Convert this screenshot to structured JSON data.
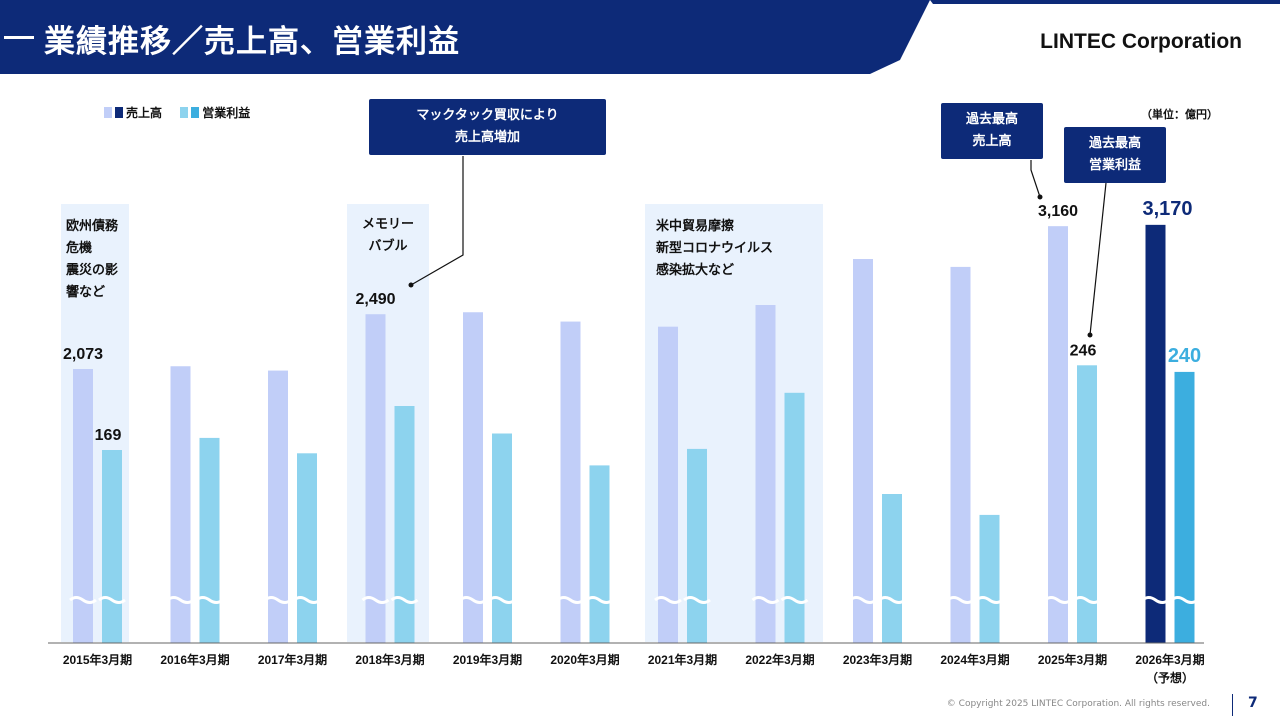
{
  "header": {
    "title": "業績推移／売上高、営業利益",
    "company": "LINTEC Corporation"
  },
  "legend": {
    "sales_label": "売上高",
    "profit_label": "営業利益"
  },
  "unit_label": "（単位：億円）",
  "annotations": {
    "shade_2015": "欧州債務\n危機\n震災の影\n響など",
    "shade_2018": "メモリー\nバブル",
    "shade_2021": "米中貿易摩擦\n新型コロナウイルス\n感染拡大など",
    "callout_acq": "マックタック買収により\n売上高増加",
    "callout_record_sales": "過去最高\n売上高",
    "callout_record_profit": "過去最高\n営業利益"
  },
  "colors": {
    "header_navy": "#0d2a78",
    "sales_actual": "#c1cef8",
    "profit_actual": "#8dd3ee",
    "sales_forecast": "#0d2a78",
    "profit_forecast": "#3caedf",
    "highlight_bg": "#e9f2fd"
  },
  "chart_data": {
    "type": "bar",
    "categories": [
      "2015年3月期",
      "2016年3月期",
      "2017年3月期",
      "2018年3月期",
      "2019年3月期",
      "2020年3月期",
      "2021年3月期",
      "2022年3月期",
      "2023年3月期",
      "2024年3月期",
      "2025年3月期",
      "2026年3月期"
    ],
    "forecast_note": "（予想）",
    "series": [
      {
        "name": "売上高",
        "values": [
          2073,
          2094,
          2061,
          2490,
          2505,
          2434,
          2395,
          2560,
          2910,
          2850,
          3160,
          3170
        ]
      },
      {
        "name": "営業利益",
        "values": [
          169,
          180,
          166,
          209,
          184,
          155,
          170,
          221,
          129,
          110,
          246,
          240
        ]
      }
    ],
    "data_labels": [
      {
        "series": 0,
        "index": 0,
        "text": "2,073"
      },
      {
        "series": 1,
        "index": 0,
        "text": "169"
      },
      {
        "series": 0,
        "index": 3,
        "text": "2,490"
      },
      {
        "series": 0,
        "index": 10,
        "text": "3,160"
      },
      {
        "series": 1,
        "index": 10,
        "text": "246"
      },
      {
        "series": 0,
        "index": 11,
        "text": "3,170"
      },
      {
        "series": 1,
        "index": 11,
        "text": "240"
      }
    ],
    "forecast_index": 11,
    "axis_break": true,
    "grid": false,
    "legend_position": "top-left"
  }
}
